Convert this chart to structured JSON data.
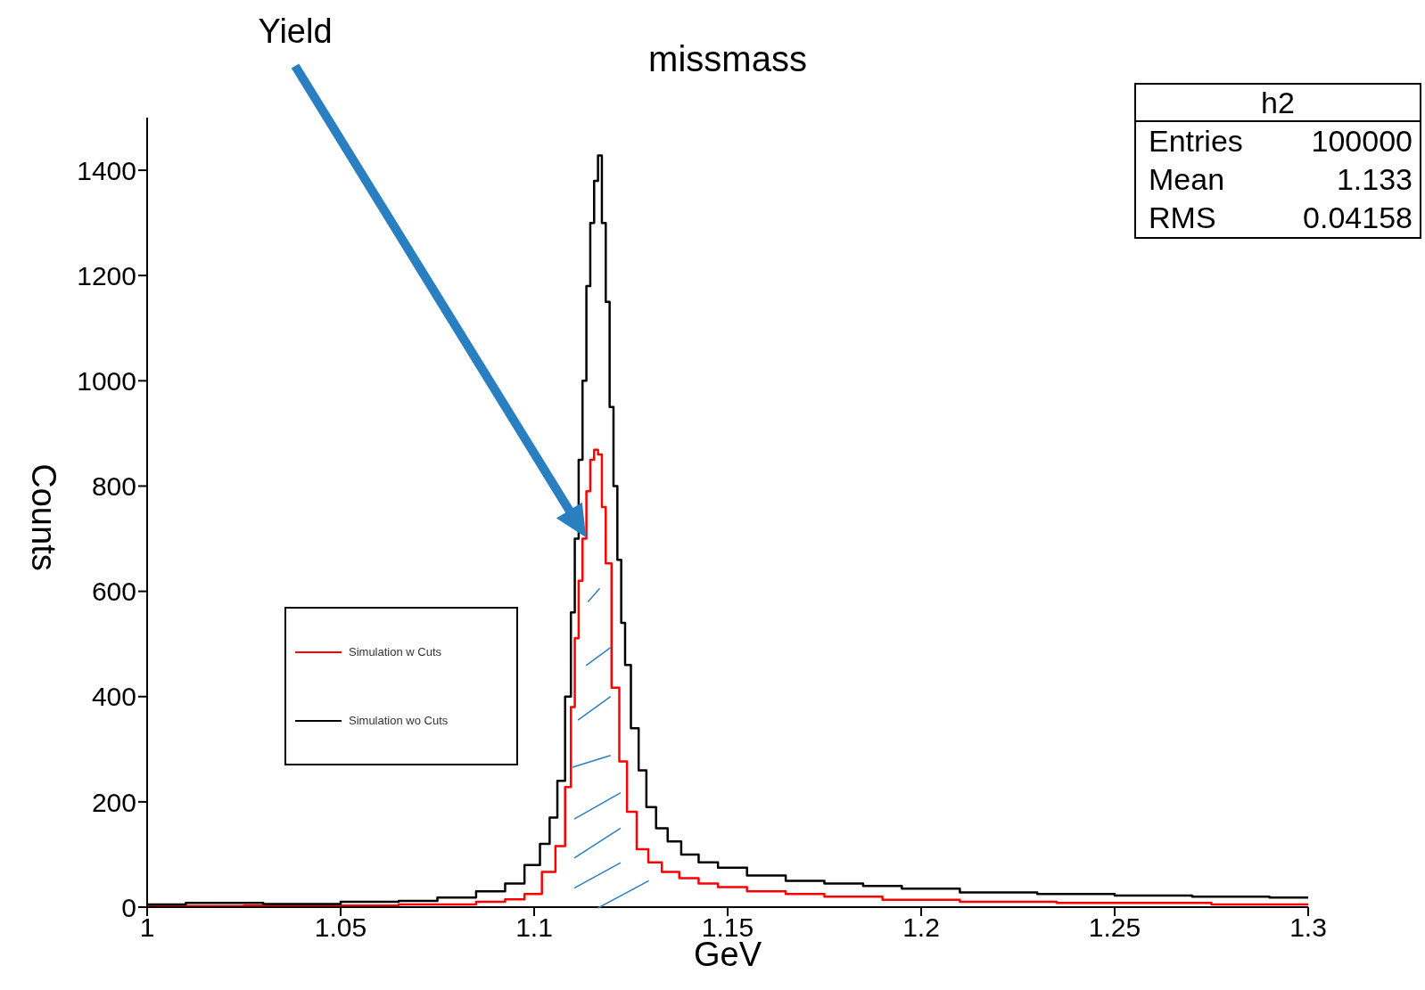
{
  "chart_data": {
    "type": "step",
    "title": "missmass",
    "xlabel": "GeV",
    "ylabel": "Counts",
    "xlim": [
      1,
      1.3
    ],
    "xticks": [
      1,
      1.05,
      1.1,
      1.15,
      1.2,
      1.25,
      1.3
    ],
    "ylim": [
      0,
      1500
    ],
    "yticks": [
      0,
      200,
      400,
      600,
      800,
      1000,
      1200,
      1400
    ],
    "legend": "left",
    "grid": false,
    "marker": "none",
    "line_style": "solid",
    "series": [
      {
        "name": "Simulation w Cuts",
        "color": "#ff0000",
        "x": [
          1.0,
          1.05,
          1.08,
          1.09,
          1.095,
          1.1,
          1.104,
          1.107,
          1.109,
          1.11,
          1.111,
          1.112,
          1.113,
          1.114,
          1.115,
          1.116,
          1.117,
          1.118,
          1.119,
          1.121,
          1.123,
          1.125,
          1.128,
          1.131,
          1.135,
          1.14,
          1.145,
          1.15,
          1.16,
          1.17,
          1.18,
          1.2,
          1.22,
          1.25,
          1.3
        ],
        "values": [
          2,
          3,
          5,
          10,
          15,
          25,
          67,
          116,
          228,
          380,
          511,
          620,
          700,
          790,
          850,
          869,
          860,
          760,
          653,
          417,
          277,
          181,
          110,
          85,
          67,
          55,
          45,
          38,
          30,
          25,
          20,
          14,
          10,
          8,
          5
        ]
      },
      {
        "name": "Simulation wo Cuts",
        "color": "#000000",
        "x": [
          1.0,
          1.02,
          1.04,
          1.06,
          1.07,
          1.08,
          1.09,
          1.095,
          1.1,
          1.103,
          1.105,
          1.107,
          1.109,
          1.11,
          1.111,
          1.112,
          1.113,
          1.114,
          1.115,
          1.116,
          1.117,
          1.118,
          1.119,
          1.12,
          1.121,
          1.122,
          1.123,
          1.124,
          1.126,
          1.128,
          1.13,
          1.133,
          1.136,
          1.14,
          1.145,
          1.15,
          1.16,
          1.17,
          1.18,
          1.19,
          1.2,
          1.22,
          1.24,
          1.26,
          1.28,
          1.3
        ],
        "values": [
          5,
          8,
          6,
          10,
          12,
          18,
          30,
          45,
          80,
          120,
          170,
          240,
          400,
          560,
          700,
          850,
          1000,
          1180,
          1300,
          1380,
          1428,
          1300,
          1150,
          950,
          800,
          660,
          540,
          460,
          340,
          260,
          190,
          150,
          125,
          100,
          85,
          75,
          60,
          50,
          45,
          40,
          35,
          28,
          25,
          22,
          20,
          18
        ]
      }
    ],
    "annotations": [
      "Yield",
      "h2",
      "Entries",
      "100000",
      "Mean",
      "1.133",
      "RMS",
      "0.04158"
    ]
  }
}
